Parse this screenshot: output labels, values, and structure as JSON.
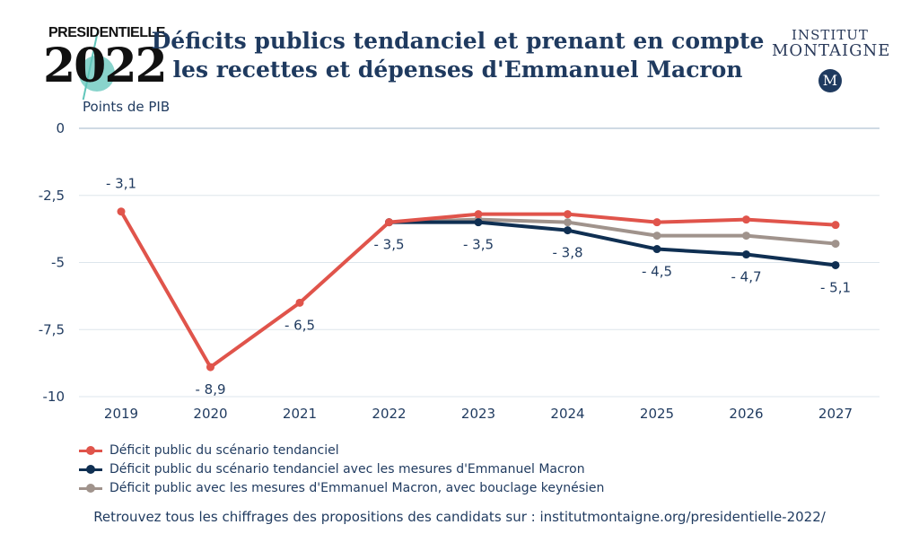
{
  "header": {
    "logo_left_top": "PRESIDENTIELLE",
    "logo_left_year": "2022",
    "title_line1": "Déficits publics tendanciel et prenant en compte",
    "title_line2": "les recettes et dépenses d'Emmanuel Macron",
    "logo_right_line1": "INSTITUT",
    "logo_right_line2": "MONTAIGNE",
    "logo_right_badge": "M"
  },
  "chart_data": {
    "type": "line",
    "title": "Déficits publics tendanciel et prenant en compte les recettes et dépenses d'Emmanuel Macron",
    "ylabel": "Points de PIB",
    "xlabel": "",
    "ylim": [
      -10,
      0
    ],
    "yticks": [
      0,
      -2.5,
      -5,
      -7.5,
      -10
    ],
    "ytick_labels": [
      "0",
      "-2,5",
      "-5",
      "-7,5",
      "-10"
    ],
    "x": [
      "2019",
      "2020",
      "2021",
      "2022",
      "2023",
      "2024",
      "2025",
      "2026",
      "2027"
    ],
    "grid": true,
    "legend_position": "bottom-left",
    "series": [
      {
        "name": "Déficit public du scénario tendanciel",
        "color": "#e0544b",
        "values": [
          -3.1,
          -8.9,
          -6.5,
          -3.5,
          -3.2,
          -3.2,
          -3.5,
          -3.4,
          -3.6
        ]
      },
      {
        "name": "Déficit public du scénario tendanciel avec les mesures d'Emmanuel Macron",
        "color": "#0f2f52",
        "values": [
          null,
          null,
          null,
          -3.5,
          -3.5,
          -3.8,
          -4.5,
          -4.7,
          -5.1
        ]
      },
      {
        "name": "Déficit public avec les mesures d'Emmanuel Macron, avec bouclage keynésien",
        "color": "#a0938c",
        "values": [
          null,
          null,
          null,
          -3.5,
          -3.4,
          -3.5,
          -4.0,
          -4.0,
          -4.3
        ]
      }
    ],
    "data_labels": [
      {
        "x": "2019",
        "text": "- 3,1"
      },
      {
        "x": "2020",
        "text": "- 8,9"
      },
      {
        "x": "2021",
        "text": "- 6,5"
      },
      {
        "x": "2022",
        "text": "- 3,5"
      },
      {
        "x": "2023",
        "text": "- 3,5"
      },
      {
        "x": "2024",
        "text": "- 3,8"
      },
      {
        "x": "2025",
        "text": "- 4,5"
      },
      {
        "x": "2026",
        "text": "- 4,7"
      },
      {
        "x": "2027",
        "text": "- 5,1"
      }
    ]
  },
  "footer": {
    "text": "Retrouvez tous les chiffrages des propositions des candidats sur : institutmontaigne.org/presidentielle-2022/"
  }
}
